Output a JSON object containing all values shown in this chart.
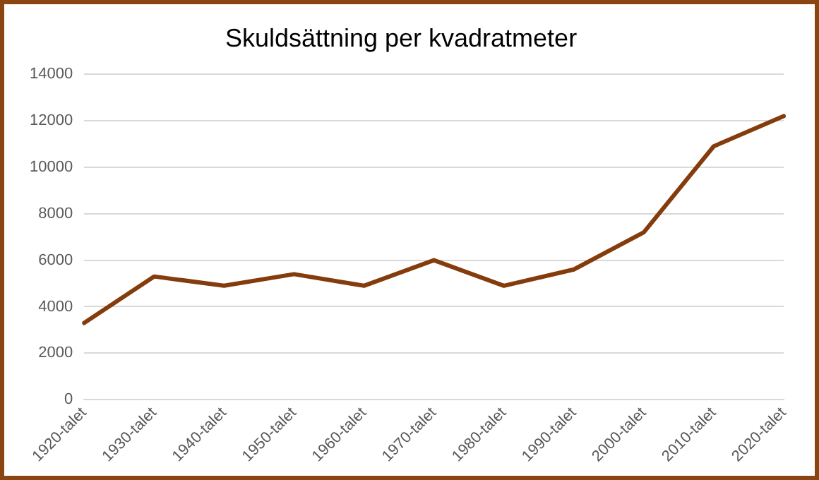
{
  "chart_data": {
    "type": "line",
    "title": "Skuldsättning per kvadratmeter",
    "categories": [
      "1920-talet",
      "1930-talet",
      "1940-talet",
      "1950-talet",
      "1960-talet",
      "1970-talet",
      "1980-talet",
      "1990-talet",
      "2000-talet",
      "2010-talet",
      "2020-talet"
    ],
    "series": [
      {
        "color": "#843c0c",
        "values": [
          3300,
          5300,
          4900,
          5400,
          4900,
          6000,
          4900,
          5600,
          7200,
          10900,
          12200
        ]
      }
    ],
    "ylim": [
      0,
      14000
    ],
    "yticks": [
      0,
      2000,
      4000,
      6000,
      8000,
      10000,
      12000,
      14000
    ],
    "grid": "y",
    "legend": false,
    "marker": "none",
    "line_style": "solid"
  }
}
